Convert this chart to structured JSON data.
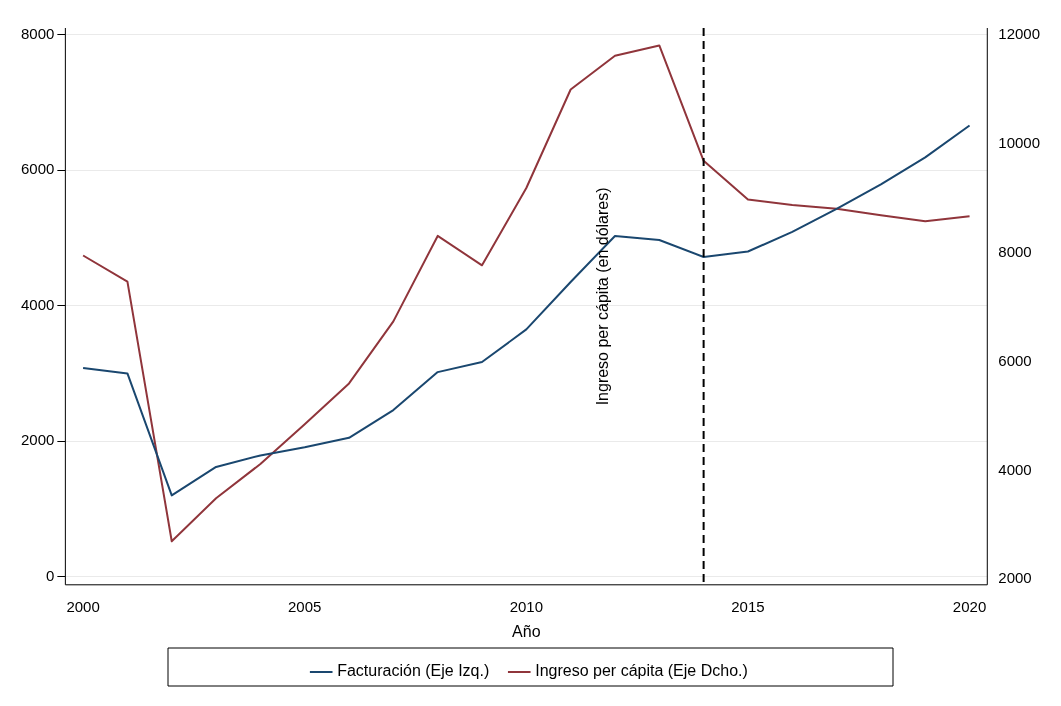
{
  "chart_data": {
    "type": "line",
    "xlabel": "Año",
    "x": [
      2000,
      2001,
      2002,
      2003,
      2004,
      2005,
      2006,
      2007,
      2008,
      2009,
      2010,
      2011,
      2012,
      2013,
      2014,
      2015,
      2016,
      2017,
      2018,
      2019,
      2020
    ],
    "series": [
      {
        "name": "Facturación (Eje Izq.)",
        "color": "#1a476f",
        "values": [
          3080,
          3000,
          1200,
          1620,
          1790,
          1910,
          2050,
          2460,
          3020,
          3170,
          3650,
          4350,
          5030,
          4970,
          4720,
          4800,
          5090,
          5430,
          5790,
          6190,
          6660
        ]
      },
      {
        "name": "Ingreso per cápita (Eje Dcho.)",
        "color": "#90353b",
        "axis": "y2",
        "values": [
          7950,
          7470,
          2700,
          3490,
          4120,
          4850,
          5600,
          6740,
          8310,
          7770,
          9190,
          11000,
          11620,
          11810,
          9690,
          8980,
          8880,
          8810,
          8690,
          8580,
          8670
        ]
      }
    ],
    "xlim": [
      1999.6,
      2020.4
    ],
    "xticks": [
      2000,
      2005,
      2010,
      2015,
      2020
    ],
    "ylim": [
      -120,
      8100
    ],
    "yticks": [
      0,
      2000,
      4000,
      6000,
      8000
    ],
    "y2lim": [
      1900,
      12130
    ],
    "y2ticks": [
      2000,
      4000,
      6000,
      8000,
      10000,
      12000
    ],
    "ref_lines": [
      {
        "axis": "x",
        "value": 2014,
        "color": "#000000",
        "line_style": "dashed"
      }
    ],
    "annotations": [
      "Ingreso per cápita (en dólares)"
    ],
    "grid": "y",
    "legend": "bottom",
    "marker": "none",
    "line_style": "solid"
  }
}
